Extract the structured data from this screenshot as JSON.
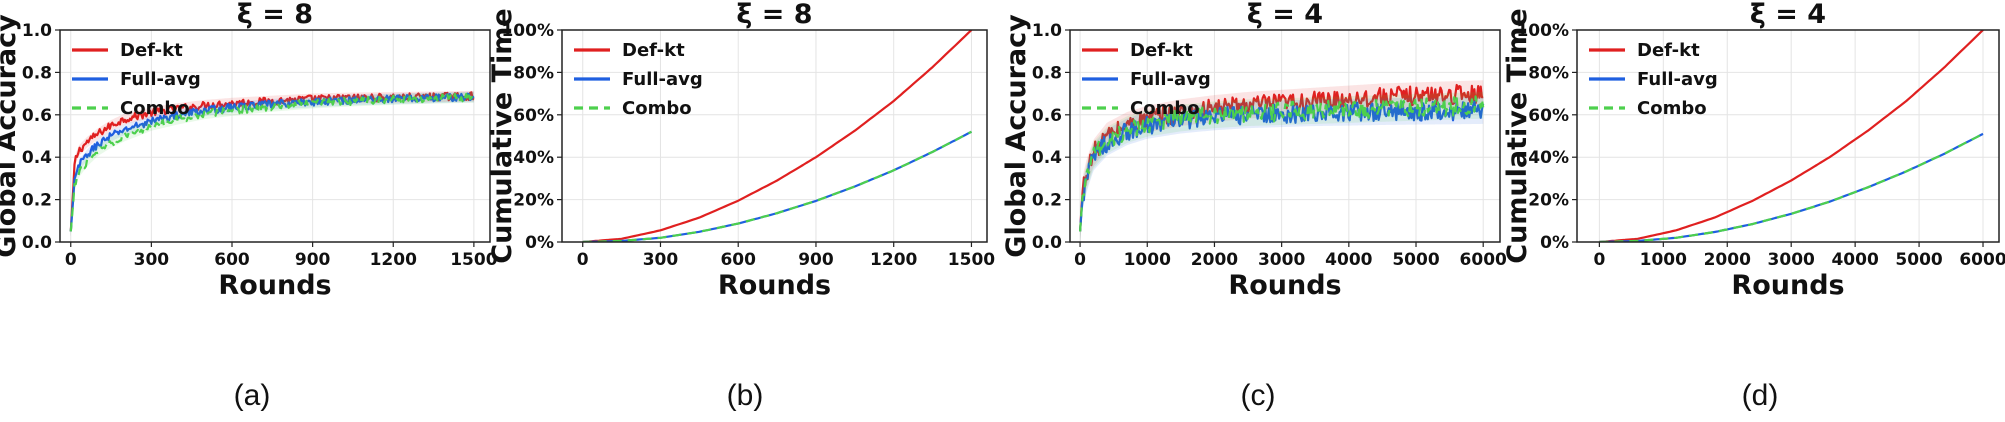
{
  "series_styles": {
    "Def-kt": {
      "color": "#e02020",
      "dash": "solid"
    },
    "Full-avg": {
      "color": "#1f5fe0",
      "dash": "solid"
    },
    "Combo": {
      "color": "#4dd04d",
      "dash": "dashed"
    }
  },
  "chart_data": [
    {
      "type": "line",
      "panel_label": "(a)",
      "title": "ξ = 8",
      "xlabel": "Rounds",
      "ylabel": "Global Accuracy",
      "xlim": [
        -40,
        1560
      ],
      "ylim": [
        0,
        1
      ],
      "x_ticks": [
        0,
        300,
        600,
        900,
        1200,
        1500
      ],
      "y_ticks": [
        0.0,
        0.2,
        0.4,
        0.6,
        0.8,
        1.0
      ],
      "y_tick_labels": [
        "0.0",
        "0.2",
        "0.4",
        "0.6",
        "0.8",
        "1.0"
      ],
      "grid": true,
      "legend": "top-left",
      "noisy": true,
      "series": [
        {
          "name": "Def-kt",
          "x": [
            0,
            15,
            30,
            60,
            100,
            150,
            200,
            300,
            400,
            500,
            600,
            750,
            900,
            1050,
            1200,
            1350,
            1500
          ],
          "y": [
            0.05,
            0.38,
            0.43,
            0.47,
            0.51,
            0.55,
            0.58,
            0.61,
            0.63,
            0.645,
            0.655,
            0.665,
            0.675,
            0.68,
            0.682,
            0.685,
            0.688
          ]
        },
        {
          "name": "Full-avg",
          "x": [
            0,
            15,
            30,
            60,
            100,
            150,
            200,
            300,
            400,
            500,
            600,
            750,
            900,
            1050,
            1200,
            1350,
            1500
          ],
          "y": [
            0.05,
            0.3,
            0.36,
            0.41,
            0.46,
            0.5,
            0.53,
            0.57,
            0.6,
            0.62,
            0.635,
            0.65,
            0.66,
            0.67,
            0.675,
            0.68,
            0.684
          ]
        },
        {
          "name": "Combo",
          "x": [
            0,
            15,
            30,
            60,
            100,
            150,
            200,
            300,
            400,
            500,
            600,
            750,
            900,
            1050,
            1200,
            1350,
            1500
          ],
          "y": [
            0.05,
            0.27,
            0.33,
            0.38,
            0.43,
            0.47,
            0.5,
            0.55,
            0.58,
            0.605,
            0.62,
            0.64,
            0.655,
            0.665,
            0.672,
            0.678,
            0.682
          ]
        }
      ]
    },
    {
      "type": "line",
      "panel_label": "(b)",
      "title": "ξ = 8",
      "xlabel": "Rounds",
      "ylabel": "Cumulative Time",
      "xlim": [
        -80,
        1560
      ],
      "ylim": [
        0,
        100
      ],
      "x_ticks": [
        0,
        300,
        600,
        900,
        1200,
        1500
      ],
      "y_ticks": [
        0,
        20,
        40,
        60,
        80,
        100
      ],
      "y_tick_labels": [
        "0%",
        "20%",
        "40%",
        "60%",
        "80%",
        "100%"
      ],
      "grid": true,
      "legend": "top-left",
      "noisy": false,
      "series": [
        {
          "name": "Def-kt",
          "x": [
            0,
            150,
            300,
            450,
            600,
            750,
            900,
            1050,
            1200,
            1350,
            1500
          ],
          "y": [
            0,
            1.5,
            5.5,
            11.5,
            19.5,
            29,
            40,
            52.5,
            66.5,
            82.5,
            100
          ]
        },
        {
          "name": "Full-avg",
          "x": [
            0,
            150,
            300,
            450,
            600,
            750,
            900,
            1050,
            1200,
            1350,
            1500
          ],
          "y": [
            0,
            0.5,
            2,
            4.8,
            8.7,
            13.6,
            19.4,
            26.2,
            33.8,
            42.5,
            52
          ]
        },
        {
          "name": "Combo",
          "x": [
            0,
            150,
            300,
            450,
            600,
            750,
            900,
            1050,
            1200,
            1350,
            1500
          ],
          "y": [
            0,
            0.5,
            2,
            4.8,
            8.7,
            13.6,
            19.4,
            26.2,
            33.8,
            42.5,
            52
          ]
        }
      ]
    },
    {
      "type": "line",
      "panel_label": "(c)",
      "title": "ξ = 4",
      "xlabel": "Rounds",
      "ylabel": "Global Accuracy",
      "xlim": [
        -150,
        6250
      ],
      "ylim": [
        0,
        1
      ],
      "x_ticks": [
        0,
        1000,
        2000,
        3000,
        4000,
        5000,
        6000
      ],
      "y_ticks": [
        0.0,
        0.2,
        0.4,
        0.6,
        0.8,
        1.0
      ],
      "y_tick_labels": [
        "0.0",
        "0.2",
        "0.4",
        "0.6",
        "0.8",
        "1.0"
      ],
      "grid": true,
      "legend": "top-left",
      "noisy": true,
      "series": [
        {
          "name": "Def-kt",
          "x": [
            0,
            40,
            100,
            200,
            400,
            700,
            1000,
            1500,
            2000,
            2500,
            3000,
            3500,
            4000,
            4500,
            5000,
            5500,
            6000
          ],
          "y": [
            0.05,
            0.25,
            0.33,
            0.42,
            0.5,
            0.55,
            0.58,
            0.61,
            0.63,
            0.645,
            0.655,
            0.665,
            0.675,
            0.685,
            0.69,
            0.695,
            0.7
          ]
        },
        {
          "name": "Full-avg",
          "x": [
            0,
            40,
            100,
            200,
            400,
            700,
            1000,
            1500,
            2000,
            2500,
            3000,
            3500,
            4000,
            4500,
            5000,
            5500,
            6000
          ],
          "y": [
            0.05,
            0.22,
            0.3,
            0.4,
            0.47,
            0.52,
            0.55,
            0.575,
            0.59,
            0.6,
            0.605,
            0.61,
            0.612,
            0.615,
            0.617,
            0.618,
            0.62
          ]
        },
        {
          "name": "Combo",
          "x": [
            0,
            40,
            100,
            200,
            400,
            700,
            1000,
            1500,
            2000,
            2500,
            3000,
            3500,
            4000,
            4500,
            5000,
            5500,
            6000
          ],
          "y": [
            0.05,
            0.23,
            0.31,
            0.41,
            0.48,
            0.53,
            0.56,
            0.585,
            0.6,
            0.61,
            0.615,
            0.62,
            0.625,
            0.63,
            0.635,
            0.64,
            0.645
          ]
        }
      ]
    },
    {
      "type": "line",
      "panel_label": "(d)",
      "title": "ξ = 4",
      "xlabel": "Rounds",
      "ylabel": "Cumulative Time",
      "xlim": [
        -350,
        6250
      ],
      "ylim": [
        0,
        100
      ],
      "x_ticks": [
        0,
        1000,
        2000,
        3000,
        4000,
        5000,
        6000
      ],
      "y_ticks": [
        0,
        20,
        40,
        60,
        80,
        100
      ],
      "y_tick_labels": [
        "0%",
        "20%",
        "40%",
        "60%",
        "80%",
        "100%"
      ],
      "grid": true,
      "legend": "top-left",
      "noisy": false,
      "series": [
        {
          "name": "Def-kt",
          "x": [
            0,
            600,
            1200,
            1800,
            2400,
            3000,
            3600,
            4200,
            4800,
            5400,
            6000
          ],
          "y": [
            0,
            1.5,
            5.5,
            11.5,
            19.5,
            29,
            40,
            52.5,
            66.5,
            82.5,
            100
          ]
        },
        {
          "name": "Full-avg",
          "x": [
            0,
            600,
            1200,
            1800,
            2400,
            3000,
            3600,
            4200,
            4800,
            5400,
            6000
          ],
          "y": [
            0,
            0.5,
            2,
            4.7,
            8.5,
            13.3,
            19,
            25.8,
            33.3,
            41.7,
            51
          ]
        },
        {
          "name": "Combo",
          "x": [
            0,
            600,
            1200,
            1800,
            2400,
            3000,
            3600,
            4200,
            4800,
            5400,
            6000
          ],
          "y": [
            0,
            0.5,
            2,
            4.7,
            8.5,
            13.3,
            19,
            25.8,
            33.3,
            41.7,
            51
          ]
        }
      ]
    }
  ]
}
